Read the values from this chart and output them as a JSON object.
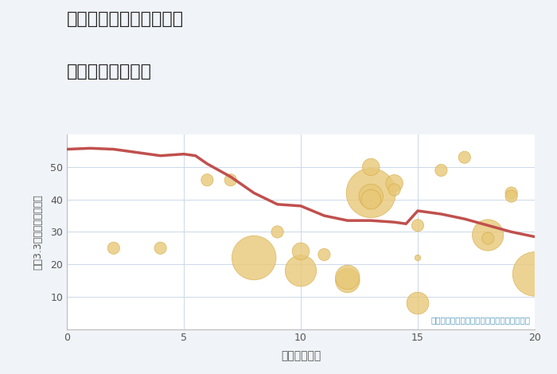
{
  "title_line1": "神奈川県伊勢原市大山の",
  "title_line2": "駅距離別土地価格",
  "xlabel": "駅距離（分）",
  "ylabel": "坪（3.3㎡）単価（万円）",
  "annotation": "円の大きさは、取引のあった物件面積を示す",
  "bg_color": "#f0f4f8",
  "plot_bg_color": "#ffffff",
  "line_color": "#c0504d",
  "scatter_color": "#e8c878",
  "scatter_edge_color": "#d4a840",
  "xlim": [
    0,
    20
  ],
  "ylim": [
    0,
    60
  ],
  "xticks": [
    0,
    5,
    10,
    15,
    20
  ],
  "yticks": [
    10,
    20,
    30,
    40,
    50
  ],
  "line_x": [
    0,
    1,
    2,
    3,
    4,
    5,
    5.5,
    6,
    7,
    8,
    9,
    10,
    11,
    12,
    13,
    14,
    14.5,
    15,
    16,
    17,
    18,
    19,
    20
  ],
  "line_y": [
    55.5,
    55.8,
    55.5,
    54.5,
    53.5,
    54.0,
    53.5,
    51.0,
    47.0,
    42.0,
    38.5,
    38.0,
    35.0,
    33.5,
    33.5,
    33.0,
    32.5,
    36.5,
    35.5,
    34.0,
    32.0,
    30.0,
    28.5
  ],
  "scatter_x": [
    2,
    4,
    6,
    7,
    8,
    9,
    10,
    10,
    11,
    12,
    12,
    13,
    13,
    13,
    13,
    14,
    14,
    15,
    15,
    15,
    16,
    17,
    18,
    18,
    19,
    19,
    20
  ],
  "scatter_y": [
    25,
    25,
    46,
    46,
    22,
    30,
    18,
    24,
    23,
    15,
    16,
    42,
    41,
    40,
    50,
    45,
    43,
    22,
    32,
    8,
    49,
    53,
    29,
    28,
    42,
    41,
    17
  ],
  "scatter_size": [
    120,
    120,
    120,
    120,
    1600,
    120,
    800,
    240,
    120,
    480,
    480,
    2000,
    480,
    320,
    240,
    240,
    120,
    28,
    120,
    400,
    120,
    120,
    800,
    120,
    120,
    120,
    1600
  ],
  "annotation_color": "#5599bb"
}
